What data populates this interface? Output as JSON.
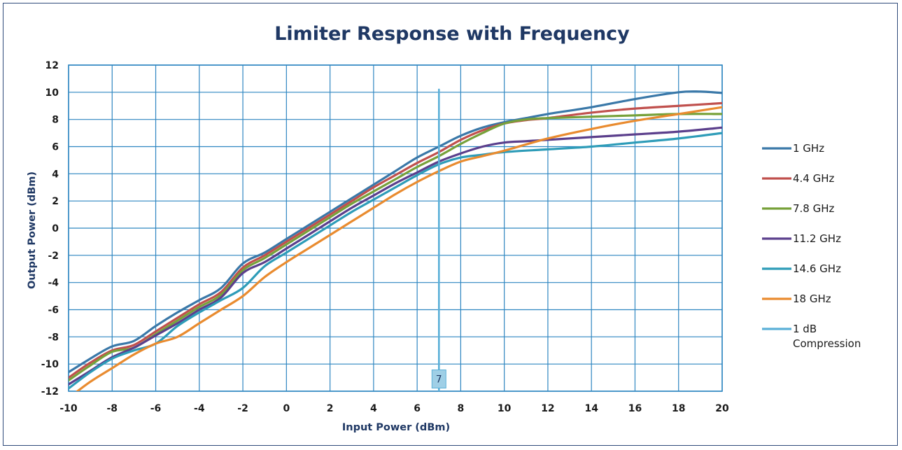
{
  "chart_data": {
    "type": "line",
    "title": "Limiter Response with Frequency",
    "xlabel": "Input Power (dBm)",
    "ylabel": "Output Power (dBm)",
    "xlim": [
      -10,
      20
    ],
    "ylim": [
      -12,
      12
    ],
    "xticks": [
      -10,
      -8,
      -6,
      -4,
      -2,
      0,
      2,
      4,
      6,
      8,
      10,
      12,
      14,
      16,
      18,
      20
    ],
    "yticks": [
      -12,
      -10,
      -8,
      -6,
      -4,
      -2,
      0,
      2,
      4,
      6,
      8,
      10,
      12
    ],
    "grid": true,
    "legend_position": "right",
    "series": [
      {
        "name": "1 GHz",
        "color": "#3a78a8",
        "points": [
          [
            -10,
            -10.6
          ],
          [
            -9,
            -9.6
          ],
          [
            -8,
            -8.7
          ],
          [
            -7,
            -8.3
          ],
          [
            -6,
            -7.2
          ],
          [
            -5,
            -6.2
          ],
          [
            -4,
            -5.3
          ],
          [
            -3,
            -4.4
          ],
          [
            -2,
            -2.6
          ],
          [
            -1,
            -1.8
          ],
          [
            0,
            -0.8
          ],
          [
            1,
            0.2
          ],
          [
            2,
            1.2
          ],
          [
            3,
            2.2
          ],
          [
            4,
            3.2
          ],
          [
            5,
            4.2
          ],
          [
            6,
            5.2
          ],
          [
            7,
            6.0
          ],
          [
            8,
            6.8
          ],
          [
            9,
            7.4
          ],
          [
            10,
            7.8
          ],
          [
            11,
            8.1
          ],
          [
            12,
            8.4
          ],
          [
            14,
            8.9
          ],
          [
            16,
            9.5
          ],
          [
            18,
            10.0
          ],
          [
            19,
            10.05
          ],
          [
            20,
            9.95
          ]
        ]
      },
      {
        "name": "4.4 GHz",
        "color": "#c0504d",
        "points": [
          [
            -10,
            -11.0
          ],
          [
            -9,
            -9.9
          ],
          [
            -8,
            -9.0
          ],
          [
            -7,
            -8.6
          ],
          [
            -6,
            -7.6
          ],
          [
            -5,
            -6.6
          ],
          [
            -4,
            -5.6
          ],
          [
            -3,
            -4.7
          ],
          [
            -2,
            -2.9
          ],
          [
            -1,
            -2.0
          ],
          [
            0,
            -1.0
          ],
          [
            1,
            0.0
          ],
          [
            2,
            1.0
          ],
          [
            3,
            2.0
          ],
          [
            4,
            3.0
          ],
          [
            5,
            3.9
          ],
          [
            6,
            4.8
          ],
          [
            7,
            5.6
          ],
          [
            8,
            6.5
          ],
          [
            9,
            7.2
          ],
          [
            10,
            7.7
          ],
          [
            11,
            7.95
          ],
          [
            12,
            8.1
          ],
          [
            14,
            8.5
          ],
          [
            16,
            8.8
          ],
          [
            18,
            9.0
          ],
          [
            20,
            9.2
          ]
        ]
      },
      {
        "name": "7.8 GHz",
        "color": "#77a13a",
        "points": [
          [
            -10,
            -11.2
          ],
          [
            -9,
            -10.1
          ],
          [
            -8,
            -9.1
          ],
          [
            -7,
            -8.8
          ],
          [
            -6,
            -7.8
          ],
          [
            -5,
            -6.8
          ],
          [
            -4,
            -5.8
          ],
          [
            -3,
            -4.9
          ],
          [
            -2,
            -3.1
          ],
          [
            -1,
            -2.2
          ],
          [
            0,
            -1.2
          ],
          [
            1,
            -0.2
          ],
          [
            2,
            0.8
          ],
          [
            3,
            1.8
          ],
          [
            4,
            2.7
          ],
          [
            5,
            3.6
          ],
          [
            6,
            4.5
          ],
          [
            7,
            5.3
          ],
          [
            8,
            6.2
          ],
          [
            9,
            7.0
          ],
          [
            10,
            7.7
          ],
          [
            11,
            8.0
          ],
          [
            12,
            8.1
          ],
          [
            14,
            8.2
          ],
          [
            16,
            8.3
          ],
          [
            18,
            8.4
          ],
          [
            20,
            8.4
          ]
        ]
      },
      {
        "name": "11.2 GHz",
        "color": "#5b3f8c",
        "points": [
          [
            -10,
            -11.5
          ],
          [
            -9,
            -10.5
          ],
          [
            -8,
            -9.5
          ],
          [
            -7,
            -8.8
          ],
          [
            -6,
            -7.9
          ],
          [
            -5,
            -7.0
          ],
          [
            -4,
            -6.0
          ],
          [
            -3,
            -5.1
          ],
          [
            -2,
            -3.3
          ],
          [
            -1,
            -2.5
          ],
          [
            0,
            -1.5
          ],
          [
            1,
            -0.5
          ],
          [
            2,
            0.5
          ],
          [
            3,
            1.5
          ],
          [
            4,
            2.4
          ],
          [
            5,
            3.3
          ],
          [
            6,
            4.1
          ],
          [
            7,
            4.9
          ],
          [
            8,
            5.5
          ],
          [
            9,
            6.0
          ],
          [
            10,
            6.3
          ],
          [
            11,
            6.4
          ],
          [
            12,
            6.5
          ],
          [
            14,
            6.7
          ],
          [
            16,
            6.9
          ],
          [
            18,
            7.1
          ],
          [
            20,
            7.4
          ]
        ]
      },
      {
        "name": "14.6 GHz",
        "color": "#2e9cb8",
        "points": [
          [
            -10,
            -11.8
          ],
          [
            -9,
            -10.6
          ],
          [
            -8,
            -9.6
          ],
          [
            -7,
            -9.0
          ],
          [
            -6,
            -8.5
          ],
          [
            -5,
            -7.2
          ],
          [
            -4,
            -6.2
          ],
          [
            -3,
            -5.3
          ],
          [
            -2,
            -4.4
          ],
          [
            -1,
            -2.8
          ],
          [
            0,
            -1.8
          ],
          [
            1,
            -0.8
          ],
          [
            2,
            0.2
          ],
          [
            3,
            1.2
          ],
          [
            4,
            2.1
          ],
          [
            5,
            3.0
          ],
          [
            6,
            3.9
          ],
          [
            7,
            4.7
          ],
          [
            8,
            5.2
          ],
          [
            9,
            5.4
          ],
          [
            10,
            5.6
          ],
          [
            12,
            5.8
          ],
          [
            14,
            6.0
          ],
          [
            16,
            6.3
          ],
          [
            18,
            6.6
          ],
          [
            20,
            7.0
          ]
        ]
      },
      {
        "name": "18 GHz",
        "color": "#e98b2f",
        "points": [
          [
            -10,
            -12.5
          ],
          [
            -9,
            -11.3
          ],
          [
            -8,
            -10.3
          ],
          [
            -7,
            -9.3
          ],
          [
            -6,
            -8.5
          ],
          [
            -5,
            -8.0
          ],
          [
            -4,
            -7.0
          ],
          [
            -3,
            -6.0
          ],
          [
            -2,
            -5.0
          ],
          [
            -1,
            -3.6
          ],
          [
            0,
            -2.5
          ],
          [
            1,
            -1.5
          ],
          [
            2,
            -0.5
          ],
          [
            3,
            0.5
          ],
          [
            4,
            1.5
          ],
          [
            5,
            2.5
          ],
          [
            6,
            3.4
          ],
          [
            7,
            4.2
          ],
          [
            8,
            4.9
          ],
          [
            9,
            5.3
          ],
          [
            10,
            5.7
          ],
          [
            12,
            6.6
          ],
          [
            14,
            7.3
          ],
          [
            16,
            7.9
          ],
          [
            18,
            8.4
          ],
          [
            20,
            8.9
          ]
        ]
      },
      {
        "name": "1 dB Compression",
        "color": "#5bb0d8",
        "points": [
          [
            7,
            -12
          ],
          [
            7,
            10.2
          ]
        ]
      }
    ],
    "annotations": [
      {
        "label": "7",
        "x": 7,
        "y": -11.1
      }
    ]
  }
}
